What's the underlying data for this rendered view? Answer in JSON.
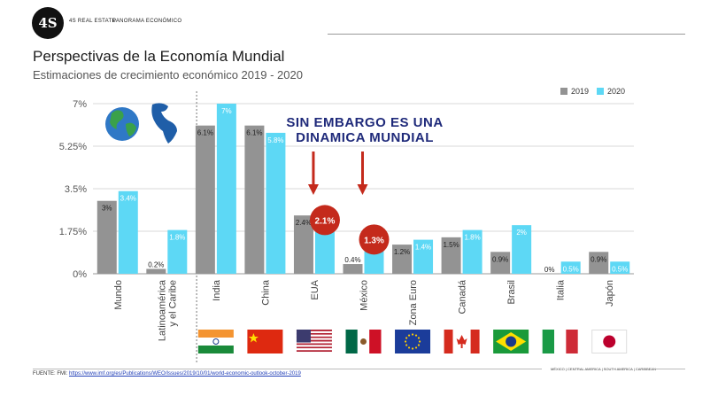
{
  "header": {
    "logo_text": "4S",
    "brand": "4S REAL ESTATE",
    "section": "PANORAMA ECONÓMICO"
  },
  "title": "Perspectivas de la Economía Mundial",
  "subtitle": "Estimaciones de crecimiento económico 2019 - 2020",
  "colors": {
    "y2019": "#939393",
    "y2020": "#5dd8f5",
    "highlight": "#c42a1c",
    "callout": "#1f2a7a"
  },
  "callout": {
    "line1": "SIN EMBARGO ES UNA",
    "line2": "DINAMICA MUNDIAL"
  },
  "chart_data": {
    "type": "bar",
    "categories": [
      "Mundo",
      "Latinoamérica y el Caribe",
      "India",
      "China",
      "EUA",
      "México",
      "Zona Euro",
      "Canadá",
      "Brasil",
      "Italia",
      "Japón"
    ],
    "series": [
      {
        "name": "2019",
        "values": [
          3.0,
          0.2,
          6.1,
          6.1,
          2.4,
          0.4,
          1.2,
          1.5,
          0.9,
          0.0,
          0.9
        ],
        "labels": [
          "3%",
          "0.2%",
          "6.1%",
          "6.1%",
          "2.4%",
          "0.4%",
          "1.2%",
          "1.5%",
          "0.9%",
          "0%",
          "0.9%"
        ]
      },
      {
        "name": "2020",
        "values": [
          3.4,
          1.8,
          7.0,
          5.8,
          2.1,
          1.3,
          1.4,
          1.8,
          2.0,
          0.5,
          0.5
        ],
        "labels": [
          "3.4%",
          "1.8%",
          "7%",
          "5.8%",
          "2.1%",
          "1.3%",
          "1.4%",
          "1.8%",
          "2%",
          "0.5%",
          "0.5%"
        ]
      }
    ],
    "highlighted": [
      {
        "category": "EUA",
        "label": "2.1%"
      },
      {
        "category": "México",
        "label": "1.3%"
      }
    ],
    "yticks": [
      "0%",
      "1.75%",
      "3.5%",
      "5.25%",
      "7%"
    ],
    "ylim": [
      0,
      7
    ],
    "grid": true,
    "legend": "top-right"
  },
  "footer": {
    "source_label": "FUENTE: FMI: ",
    "source_url": "https://www.imf.org/es/Publications/WEO/Issues/2019/10/01/world-economic-outlook-october-2019",
    "regions": "MÉXICO | CENTRAL AMERICA | SOUTH AMERICA | CARIBBEAN"
  }
}
